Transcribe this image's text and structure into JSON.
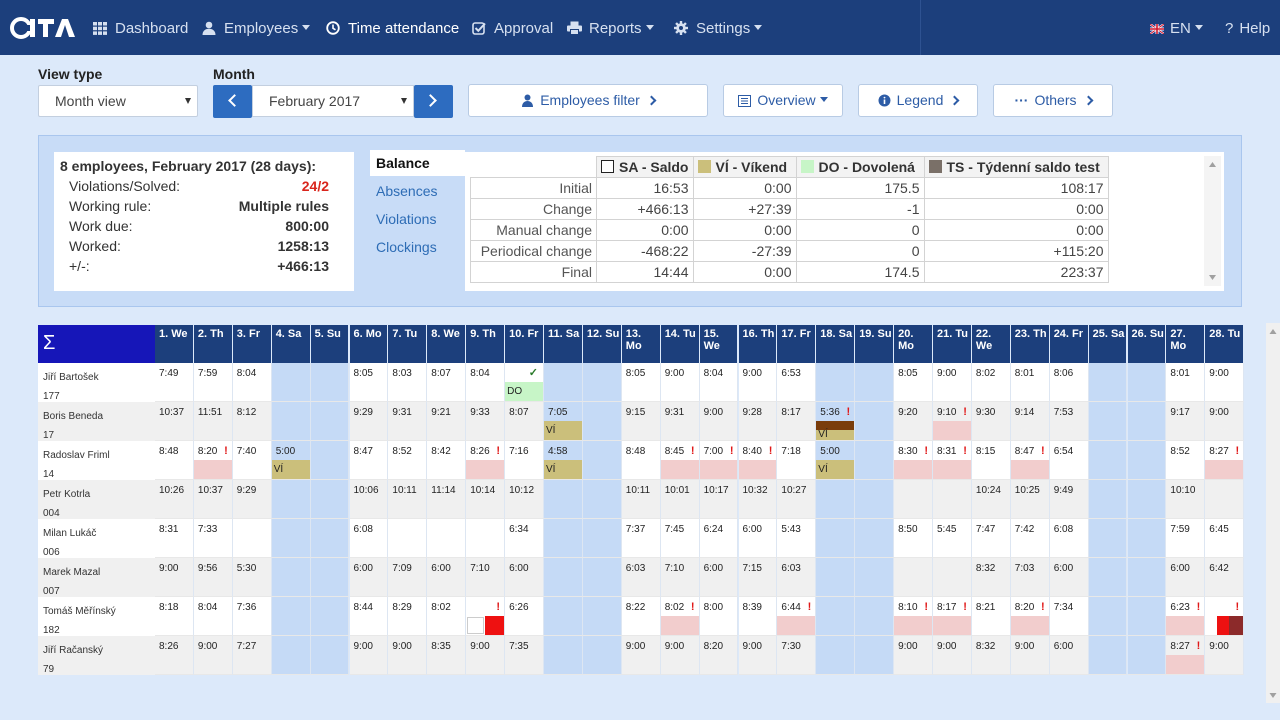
{
  "nav": {
    "items": [
      {
        "key": "dashboard",
        "label": "Dashboard",
        "icon": "grid-icon",
        "x": 93,
        "caret": false
      },
      {
        "key": "employees",
        "label": "Employees",
        "icon": "user-icon",
        "x": 202,
        "caret": true
      },
      {
        "key": "time",
        "label": "Time attendance",
        "icon": "clock-icon",
        "x": 326,
        "caret": false,
        "active": true
      },
      {
        "key": "approval",
        "label": "Approval",
        "icon": "check-square-icon",
        "x": 472,
        "caret": false
      },
      {
        "key": "reports",
        "label": "Reports",
        "icon": "print-icon",
        "x": 567,
        "caret": true
      },
      {
        "key": "settings",
        "label": "Settings",
        "icon": "gear-icon",
        "x": 674,
        "caret": true
      }
    ],
    "lang": "EN",
    "help": "Help"
  },
  "toolbar": {
    "view_type_label": "View type",
    "view_type_value": "Month view",
    "month_label": "Month",
    "month_value": "February 2017",
    "employees_filter": "Employees filter",
    "overview": "Overview",
    "legend": "Legend",
    "others": "Others"
  },
  "summary": {
    "title": "8 employees, February 2017 (28 days):",
    "rows": [
      {
        "k": "Violations/Solved:",
        "v": "24/2",
        "red": true
      },
      {
        "k": "Working rule:",
        "v": "Multiple rules"
      },
      {
        "k": "Work due:",
        "v": "800:00"
      },
      {
        "k": "Worked:",
        "v": "1258:13"
      },
      {
        "k": "+/-:",
        "v": "+466:13"
      }
    ]
  },
  "tabs": [
    "Balance",
    "Absences",
    "Violations",
    "Clockings"
  ],
  "balance": {
    "headers": [
      {
        "label": "SA - Saldo",
        "color": "#ffffff",
        "border": "#222222"
      },
      {
        "label": "VÍ - Víkend",
        "color": "#cbbf7b"
      },
      {
        "label": "DO - Dovolená",
        "color": "#c7f5c7"
      },
      {
        "label": "TS - Týdenní saldo test",
        "color": "#7a7068"
      }
    ],
    "rows": [
      {
        "label": "Initial",
        "values": [
          "16:53",
          "0:00",
          "175.5",
          "108:17"
        ]
      },
      {
        "label": "Change",
        "values": [
          "+466:13",
          "+27:39",
          "-1",
          "0:00"
        ]
      },
      {
        "label": "Manual change",
        "values": [
          "0:00",
          "0:00",
          "0",
          "0:00"
        ]
      },
      {
        "label": "Periodical change",
        "values": [
          "-468:22",
          "-27:39",
          "0",
          "+115:20"
        ]
      },
      {
        "label": "Final",
        "values": [
          "14:44",
          "0:00",
          "174.5",
          "223:37"
        ]
      }
    ]
  },
  "grid": {
    "sigma": "Σ",
    "days": [
      "1. We",
      "2. Th",
      "3. Fr",
      "4. Sa",
      "5. Su",
      "6. Mo",
      "7. Tu",
      "8. We",
      "9. Th",
      "10. Fr",
      "11. Sa",
      "12. Su",
      "13. Mo",
      "14. Tu",
      "15. We",
      "16. Th",
      "17. Fr",
      "18. Sa",
      "19. Su",
      "20. Mo",
      "21. Tu",
      "22. We",
      "23. Th",
      "24. Fr",
      "25. Sa",
      "26. Su",
      "27. Mo",
      "28. Tu"
    ],
    "weekend_days": [
      4,
      5,
      11,
      12,
      18,
      19,
      25,
      26
    ],
    "employees": [
      {
        "name": "Jiří Bartošek",
        "id": "177",
        "times": {
          "1": "7:49",
          "2": "7:59",
          "3": "8:04",
          "6": "8:05",
          "7": "8:03",
          "8": "8:07",
          "9": "8:04",
          "13": "8:05",
          "14": "9:00",
          "15": "8:04",
          "16": "9:00",
          "17": "6:53",
          "20": "8:05",
          "21": "9:00",
          "22": "8:02",
          "23": "8:01",
          "24": "8:06",
          "27": "8:01",
          "28": "9:00"
        },
        "checks": [
          10
        ],
        "absences": [
          {
            "day": 10,
            "code": "DO",
            "color": "#c7f5c7"
          }
        ],
        "viol": [],
        "pink": []
      },
      {
        "name": "Boris Beneda",
        "id": "17",
        "times": {
          "1": "10:37",
          "2": "11:51",
          "3": "8:12",
          "6": "9:29",
          "7": "9:31",
          "8": "9:21",
          "9": "9:33",
          "10": "8:07",
          "11": "7:05",
          "13": "9:15",
          "14": "9:31",
          "15": "9:00",
          "16": "9:28",
          "17": "8:17",
          "18": "5:36",
          "20": "9:20",
          "21": "9:10",
          "22": "9:30",
          "23": "9:14",
          "24": "7:53",
          "27": "9:17",
          "28": "9:00"
        },
        "checks": [],
        "absences": [
          {
            "day": 11,
            "code": "VÍ",
            "color": "#cbbf7b"
          },
          {
            "day": 18,
            "code": "VÍ",
            "color": "#cbbf7b",
            "brown": true
          }
        ],
        "viol": [
          18,
          21
        ],
        "pink": [
          21
        ]
      },
      {
        "name": "Radoslav Friml",
        "id": "14",
        "times": {
          "1": "8:48",
          "2": "8:20",
          "3": "7:40",
          "4": "5:00",
          "6": "8:47",
          "7": "8:52",
          "8": "8:42",
          "9": "8:26",
          "10": "7:16",
          "11": "4:58",
          "13": "8:48",
          "14": "8:45",
          "15": "7:00",
          "16": "8:40",
          "17": "7:18",
          "18": "5:00",
          "20": "8:30",
          "21": "8:31",
          "22": "8:15",
          "23": "8:47",
          "24": "6:54",
          "27": "8:52",
          "28": "8:27"
        },
        "checks": [],
        "absences": [
          {
            "day": 4,
            "code": "VÍ",
            "color": "#cbbf7b"
          },
          {
            "day": 11,
            "code": "VÍ",
            "color": "#cbbf7b"
          },
          {
            "day": 18,
            "code": "VÍ",
            "color": "#cbbf7b"
          }
        ],
        "viol": [
          2,
          9,
          14,
          15,
          16,
          20,
          21,
          23,
          28
        ],
        "pink": [
          2,
          9,
          14,
          15,
          16,
          20,
          21,
          23,
          28
        ]
      },
      {
        "name": "Petr Kotrla",
        "id": "004",
        "times": {
          "1": "10:26",
          "2": "10:37",
          "3": "9:29",
          "6": "10:06",
          "7": "10:11",
          "8": "11:14",
          "9": "10:14",
          "10": "10:12",
          "13": "10:11",
          "14": "10:01",
          "15": "10:17",
          "16": "10:32",
          "17": "10:27",
          "22": "10:24",
          "23": "10:25",
          "24": "9:49",
          "27": "10:10"
        },
        "checks": [],
        "absences": [],
        "viol": [],
        "pink": []
      },
      {
        "name": "Milan Lukáč",
        "id": "006",
        "times": {
          "1": "8:31",
          "2": "7:33",
          "6": "6:08",
          "10": "6:34",
          "13": "7:37",
          "14": "7:45",
          "15": "6:24",
          "16": "6:00",
          "17": "5:43",
          "20": "8:50",
          "21": "5:45",
          "22": "7:47",
          "23": "7:42",
          "24": "6:08",
          "27": "7:59",
          "28": "6:45"
        },
        "checks": [],
        "absences": [],
        "viol": [],
        "pink": []
      },
      {
        "name": "Marek Mazal",
        "id": "007",
        "times": {
          "1": "9:00",
          "2": "9:56",
          "3": "5:30",
          "6": "6:00",
          "7": "7:09",
          "8": "6:00",
          "9": "7:10",
          "10": "6:00",
          "13": "6:03",
          "14": "7:10",
          "15": "6:00",
          "16": "7:15",
          "17": "6:03",
          "22": "8:32",
          "23": "7:03",
          "24": "6:00",
          "27": "6:00",
          "28": "6:42"
        },
        "checks": [],
        "absences": [],
        "viol": [],
        "pink": []
      },
      {
        "name": "Tomáš Měřínský",
        "id": "182",
        "times": {
          "1": "8:18",
          "2": "8:04",
          "3": "7:36",
          "6": "8:44",
          "7": "8:29",
          "8": "8:02",
          "10": "6:26",
          "13": "8:22",
          "14": "8:02",
          "15": "8:00",
          "16": "8:39",
          "17": "6:44",
          "20": "8:10",
          "21": "8:17",
          "22": "8:21",
          "23": "8:20",
          "24": "7:34",
          "27": "6:23"
        },
        "checks": [],
        "absences": [],
        "viol": [
          9,
          14,
          17,
          20,
          21,
          23,
          27,
          28
        ],
        "pink": [
          14,
          17,
          20,
          21,
          23,
          27
        ]
      },
      {
        "name": "Jiří Račanský",
        "id": "79",
        "times": {
          "1": "8:26",
          "2": "9:00",
          "3": "7:27",
          "6": "9:00",
          "7": "9:00",
          "8": "8:35",
          "9": "9:00",
          "10": "7:35",
          "13": "9:00",
          "14": "9:00",
          "15": "8:20",
          "16": "9:00",
          "17": "7:30",
          "20": "9:00",
          "21": "9:00",
          "22": "8:32",
          "23": "9:00",
          "24": "6:00",
          "27": "8:27",
          "28": "9:00"
        },
        "checks": [],
        "absences": [],
        "viol": [
          27
        ],
        "pink": [
          27
        ]
      }
    ]
  }
}
